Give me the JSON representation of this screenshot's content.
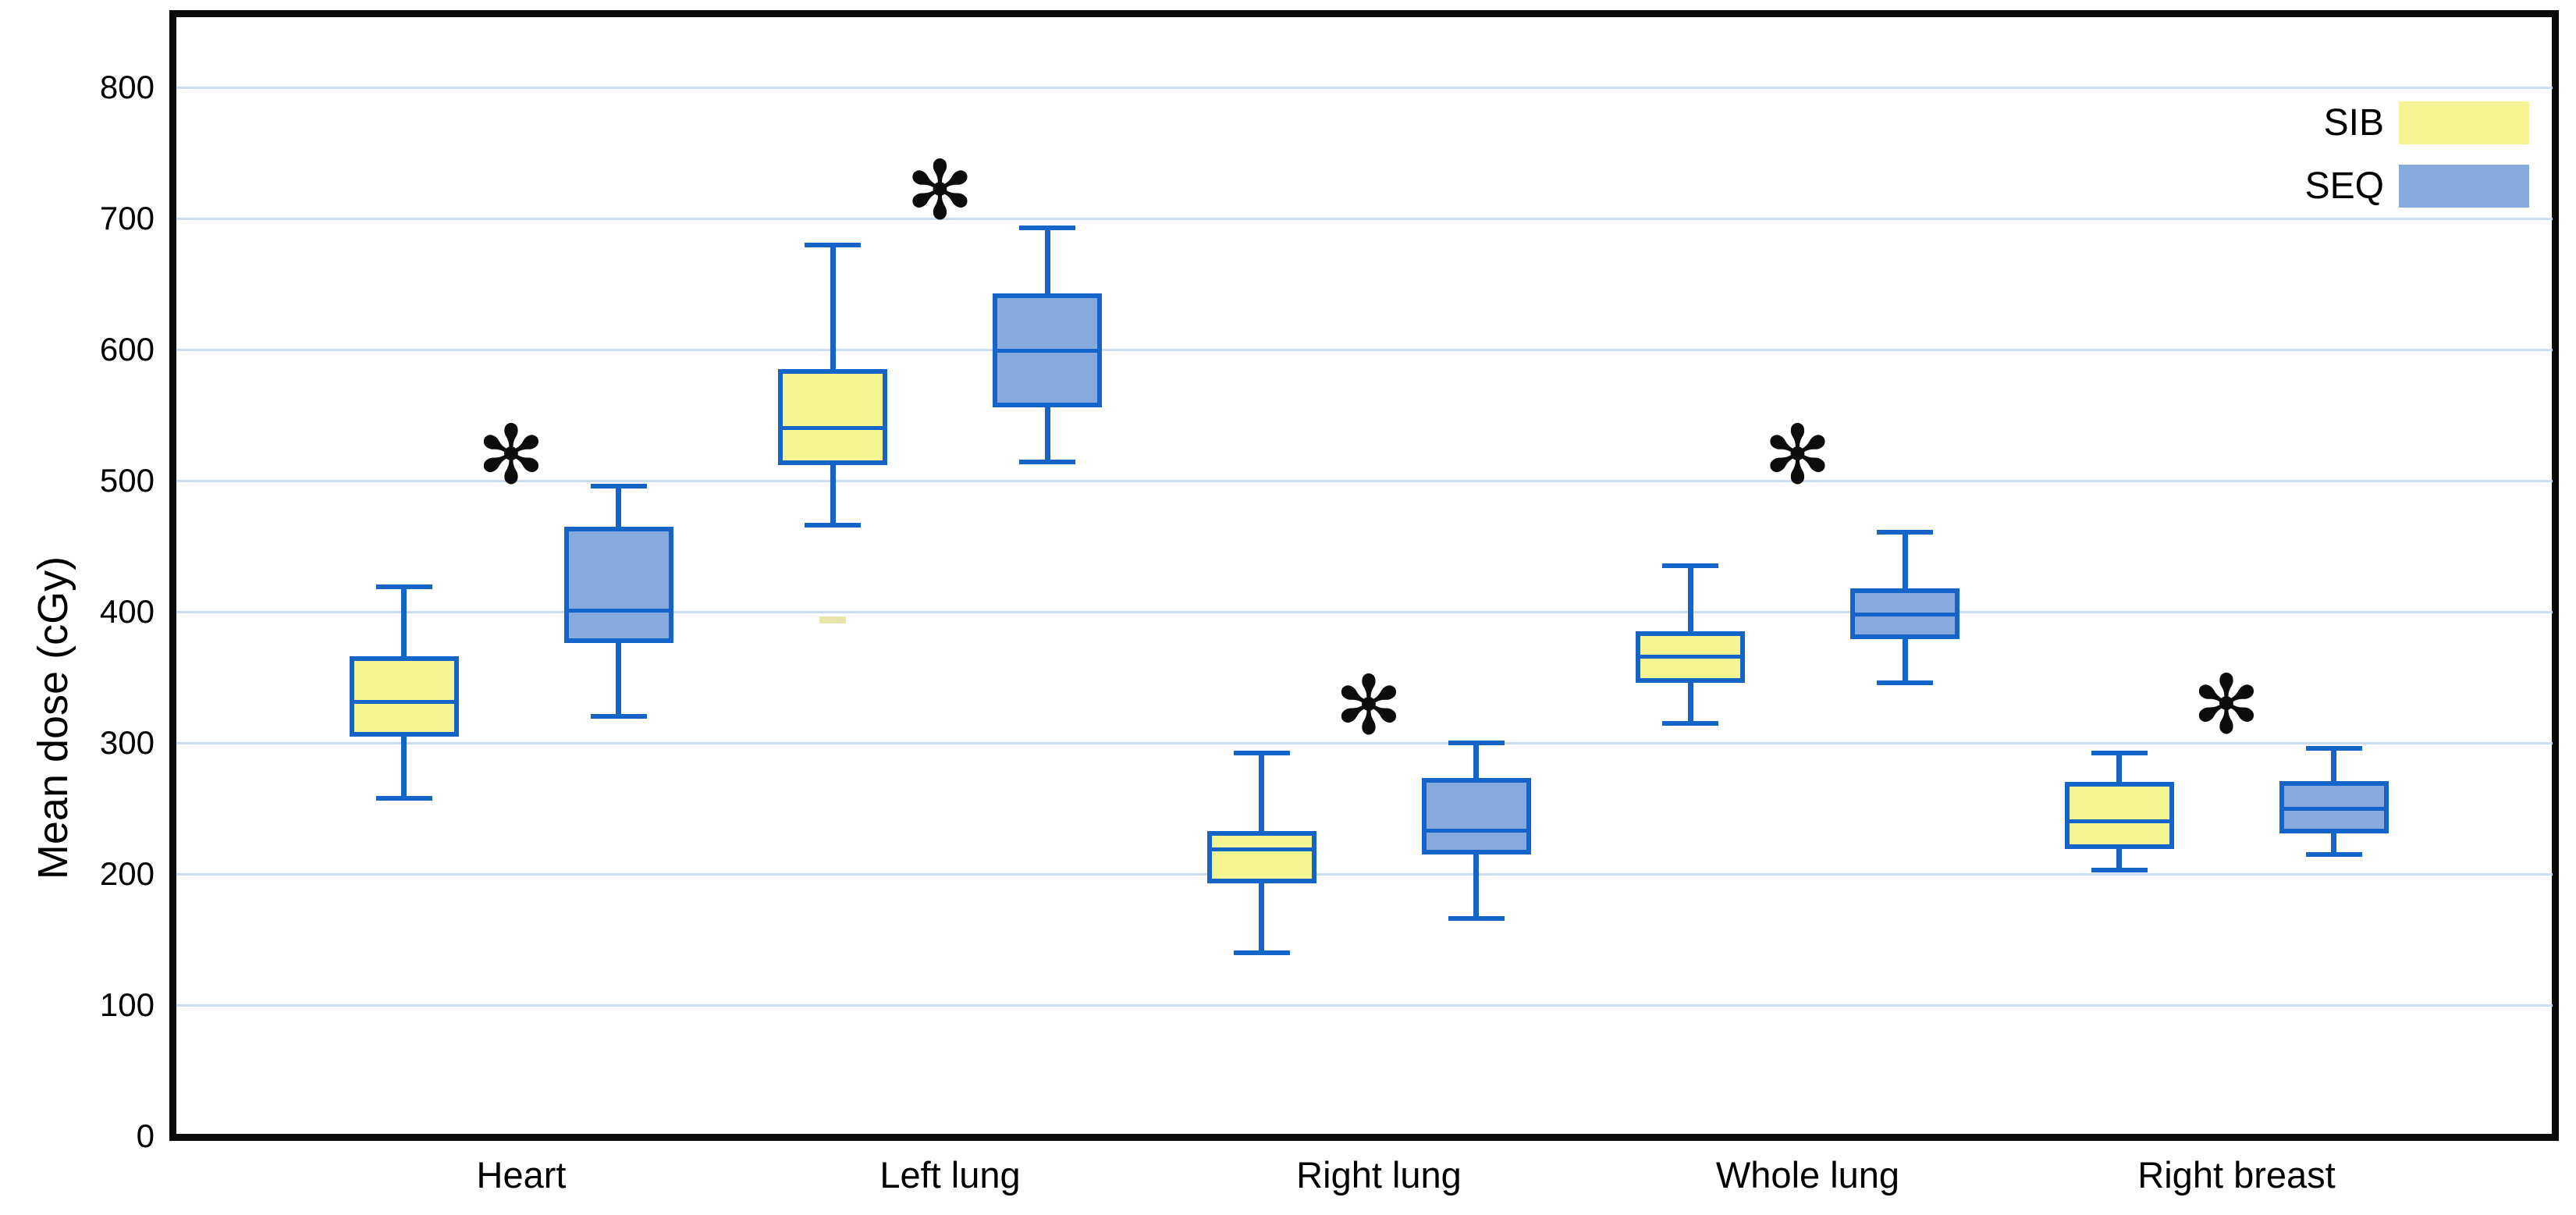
{
  "chart_data": {
    "type": "boxplot",
    "title": "",
    "xlabel": "",
    "ylabel": "Mean dose (cGy)",
    "ylim": [
      0,
      850
    ],
    "yticks": [
      0,
      100,
      200,
      300,
      400,
      500,
      600,
      700,
      800
    ],
    "grid": true,
    "legend_position": "top-right",
    "categories": [
      "Heart",
      "Left lung",
      "Right lung",
      "Whole lung",
      "Right breast"
    ],
    "series": [
      {
        "name": "SIB",
        "fill": "#f4f492",
        "boxes": [
          {
            "min": 258,
            "q1": 305,
            "median": 331,
            "q3": 366,
            "max": 419
          },
          {
            "min": 466,
            "q1": 512,
            "median": 540,
            "q3": 585,
            "max": 680
          },
          {
            "min": 140,
            "q1": 193,
            "median": 219,
            "q3": 233,
            "max": 292
          },
          {
            "min": 315,
            "q1": 346,
            "median": 366,
            "q3": 385,
            "max": 435
          },
          {
            "min": 203,
            "q1": 219,
            "median": 240,
            "q3": 270,
            "max": 292
          }
        ]
      },
      {
        "name": "SEQ",
        "fill": "#85aadb",
        "boxes": [
          {
            "min": 320,
            "q1": 376,
            "median": 401,
            "q3": 465,
            "max": 496
          },
          {
            "min": 514,
            "q1": 556,
            "median": 599,
            "q3": 643,
            "max": 693
          },
          {
            "min": 166,
            "q1": 215,
            "median": 233,
            "q3": 273,
            "max": 300
          },
          {
            "min": 346,
            "q1": 379,
            "median": 398,
            "q3": 418,
            "max": 461
          },
          {
            "min": 215,
            "q1": 231,
            "median": 250,
            "q3": 271,
            "max": 296
          }
        ]
      }
    ],
    "significance_markers": {
      "symbol": "✻",
      "positions": [
        {
          "category": "Heart",
          "y": 517
        },
        {
          "category": "Left lung",
          "y": 719
        },
        {
          "category": "Right lung",
          "y": 326
        },
        {
          "category": "Whole lung",
          "y": 517
        },
        {
          "category": "Right breast",
          "y": 327
        }
      ]
    },
    "stray_mark": {
      "category": "Left lung",
      "series": "SIB",
      "y": 394,
      "color": "#eae6ab"
    },
    "colors": {
      "box_border": "#1565c8",
      "gridline": "#ccddf1",
      "axis_border": "#0a0a0a",
      "background": "#ffffff",
      "text": "#000000"
    }
  }
}
